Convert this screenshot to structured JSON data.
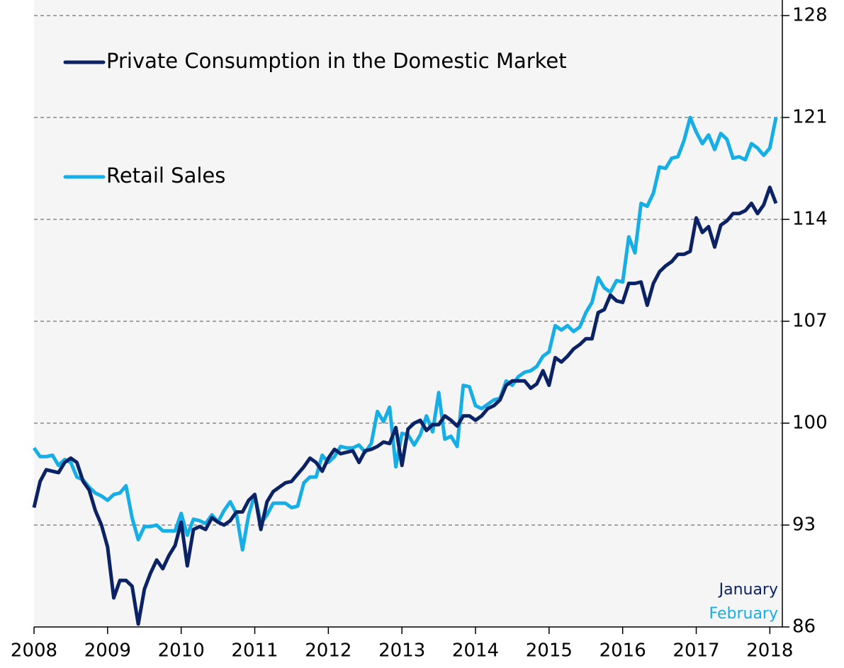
{
  "chart_data": {
    "type": "line",
    "x": [
      2008,
      2008.083,
      2008.167,
      2008.25,
      2008.333,
      2008.417,
      2008.5,
      2008.583,
      2008.667,
      2008.75,
      2008.833,
      2008.917,
      2009,
      2009.083,
      2009.167,
      2009.25,
      2009.333,
      2009.417,
      2009.5,
      2009.583,
      2009.667,
      2009.75,
      2009.833,
      2009.917,
      2010,
      2010.083,
      2010.167,
      2010.25,
      2010.333,
      2010.417,
      2010.5,
      2010.583,
      2010.667,
      2010.75,
      2010.833,
      2010.917,
      2011,
      2011.083,
      2011.167,
      2011.25,
      2011.333,
      2011.417,
      2011.5,
      2011.583,
      2011.667,
      2011.75,
      2011.833,
      2011.917,
      2012,
      2012.083,
      2012.167,
      2012.25,
      2012.333,
      2012.417,
      2012.5,
      2012.583,
      2012.667,
      2012.75,
      2012.833,
      2012.917,
      2013,
      2013.083,
      2013.167,
      2013.25,
      2013.333,
      2013.417,
      2013.5,
      2013.583,
      2013.667,
      2013.75,
      2013.833,
      2013.917,
      2014,
      2014.083,
      2014.167,
      2014.25,
      2014.333,
      2014.417,
      2014.5,
      2014.583,
      2014.667,
      2014.75,
      2014.833,
      2014.917,
      2015,
      2015.083,
      2015.167,
      2015.25,
      2015.333,
      2015.417,
      2015.5,
      2015.583,
      2015.667,
      2015.75,
      2015.833,
      2015.917,
      2016,
      2016.083,
      2016.167,
      2016.25,
      2016.333,
      2016.417,
      2016.5,
      2016.583,
      2016.667,
      2016.75,
      2016.833,
      2016.917,
      2017,
      2017.083,
      2017.167,
      2017.25,
      2017.333,
      2017.417,
      2017.5,
      2017.583,
      2017.667,
      2017.75,
      2017.833,
      2017.917,
      2018,
      2018.083
    ],
    "series": [
      {
        "name": "Private Consumption in the Domestic Market",
        "color": "#0b2265",
        "values": [
          94.2,
          96,
          96.8,
          96.7,
          96.6,
          97.3,
          97.6,
          97.3,
          96,
          95.4,
          94,
          93,
          91.5,
          88,
          89.2,
          89.2,
          88.8,
          86.2,
          88.6,
          89.7,
          90.6,
          90,
          90.9,
          91.6,
          93.2,
          90.2,
          92.7,
          92.9,
          92.7,
          93.5,
          93.2,
          93,
          93.3,
          93.9,
          93.9,
          94.7,
          95.1,
          92.7,
          94.6,
          95.3,
          95.6,
          95.9,
          96,
          96.5,
          97,
          97.6,
          97.3,
          96.7,
          97.6,
          98.2,
          97.9,
          98,
          98.1,
          97.3,
          98.1,
          98.2,
          98.4,
          98.7,
          98.6,
          99.7,
          97.1,
          99.6,
          100,
          100.2,
          99.5,
          99.9,
          99.9,
          100.5,
          100.2,
          99.8,
          100.5,
          100.5,
          100.2,
          100.5,
          101,
          101.2,
          101.6,
          102.6,
          102.9,
          102.9,
          102.9,
          102.4,
          102.7,
          103.6,
          102.6,
          104.5,
          104.2,
          104.6,
          105.1,
          105.4,
          105.8,
          105.8,
          107.6,
          107.8,
          108.8,
          108.4,
          108.3,
          109.6,
          109.6,
          109.7,
          108.1,
          109.6,
          110.4,
          110.8,
          111.1,
          111.6,
          111.6,
          111.8,
          114.1,
          113.1,
          113.5,
          112.1,
          113.6,
          113.9,
          114.4,
          114.4,
          114.6,
          115.1,
          114.4,
          115,
          116.2,
          115.1
        ]
      },
      {
        "name": "Retail Sales",
        "color": "#16aee6",
        "values": [
          98.3,
          97.7,
          97.7,
          97.8,
          97.1,
          97.5,
          97.3,
          96.3,
          96.1,
          95.6,
          95.2,
          95,
          94.7,
          95.1,
          95.2,
          95.7,
          93.5,
          92,
          92.9,
          92.9,
          93,
          92.6,
          92.6,
          92.6,
          93.8,
          92.3,
          93.4,
          93.3,
          93.1,
          93.7,
          93.2,
          94,
          94.6,
          93.8,
          91.3,
          93.7,
          95.1,
          93.1,
          93.7,
          94.5,
          94.5,
          94.5,
          94.2,
          94.3,
          95.9,
          96.3,
          96.3,
          97.8,
          97.3,
          97.7,
          98.4,
          98.3,
          98.3,
          98.5,
          98,
          98.6,
          100.8,
          100.1,
          101.1,
          97,
          99.3,
          99.2,
          98.5,
          99.2,
          100.5,
          99.4,
          102.1,
          98.9,
          99.1,
          98.4,
          102.6,
          102.5,
          101.2,
          101,
          101.3,
          101.6,
          101.7,
          102.9,
          102.6,
          103.2,
          103.5,
          103.6,
          103.9,
          104.6,
          104.9,
          106.7,
          106.4,
          106.7,
          106.3,
          106.6,
          107.6,
          108.3,
          110,
          109.3,
          109,
          109.8,
          109.7,
          112.8,
          111.7,
          115.1,
          114.9,
          115.8,
          117.6,
          117.5,
          118.2,
          118.3,
          119.4,
          121,
          120,
          119.2,
          119.8,
          118.8,
          119.9,
          119.5,
          118.2,
          118.3,
          118.1,
          119.2,
          118.9,
          118.4,
          118.9,
          121
        ]
      }
    ],
    "xlim": [
      2008,
      2018.17
    ],
    "xticks": [
      2008,
      2009,
      2010,
      2011,
      2012,
      2013,
      2014,
      2015,
      2016,
      2017,
      2018
    ],
    "ylim": [
      86,
      128
    ],
    "yticks": [
      86,
      93,
      100,
      107,
      114,
      121,
      128
    ],
    "grid": true,
    "annotations": [
      "January",
      "February"
    ]
  }
}
